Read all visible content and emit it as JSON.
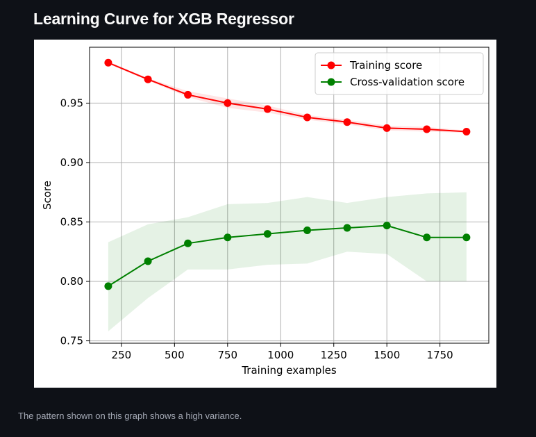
{
  "page": {
    "title": "Learning Curve for XGB Regressor",
    "caption": "The pattern shown on this graph shows a high variance."
  },
  "chart_data": {
    "type": "line",
    "title": "",
    "xlabel": "Training examples",
    "ylabel": "Score",
    "xlim": [
      100,
      1980
    ],
    "ylim": [
      0.748,
      0.997
    ],
    "xticks": [
      250,
      500,
      750,
      1000,
      1250,
      1500,
      1750
    ],
    "yticks": [
      0.75,
      0.8,
      0.85,
      0.9,
      0.95
    ],
    "ytick_labels": [
      "0.75",
      "0.80",
      "0.85",
      "0.90",
      "0.95"
    ],
    "grid": true,
    "legend_position": "top-right",
    "x": [
      188,
      375,
      563,
      750,
      938,
      1125,
      1313,
      1500,
      1688,
      1875
    ],
    "series": [
      {
        "name": "Training score",
        "color": "#ff0000",
        "band_color": "#ff0000",
        "marker": "circle",
        "values": [
          0.984,
          0.97,
          0.957,
          0.95,
          0.945,
          0.938,
          0.934,
          0.929,
          0.928,
          0.926
        ],
        "band_upper": [
          0.985,
          0.971,
          0.96,
          0.954,
          0.948,
          0.94,
          0.936,
          0.931,
          0.93,
          0.927
        ],
        "band_lower": [
          0.983,
          0.969,
          0.955,
          0.946,
          0.942,
          0.936,
          0.932,
          0.927,
          0.926,
          0.925
        ]
      },
      {
        "name": "Cross-validation score",
        "color": "#008000",
        "band_color": "#008000",
        "marker": "circle",
        "values": [
          0.796,
          0.817,
          0.832,
          0.837,
          0.84,
          0.843,
          0.845,
          0.847,
          0.837,
          0.837
        ],
        "band_upper": [
          0.833,
          0.848,
          0.854,
          0.865,
          0.866,
          0.871,
          0.866,
          0.871,
          0.874,
          0.875
        ],
        "band_lower": [
          0.758,
          0.786,
          0.81,
          0.81,
          0.814,
          0.815,
          0.825,
          0.823,
          0.8,
          0.8
        ]
      }
    ]
  }
}
